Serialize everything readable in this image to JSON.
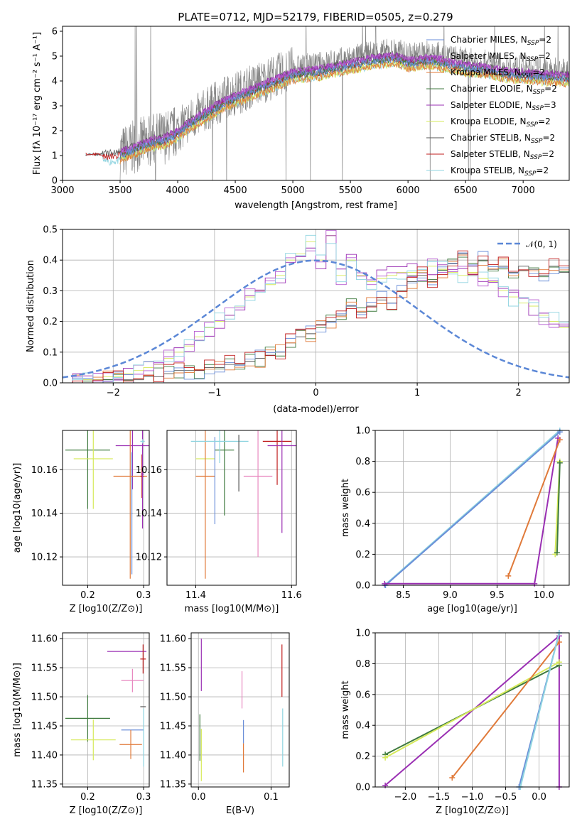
{
  "page_title": "PLATE=0712, MJD=52179, FIBERID=0505, z=0.279",
  "colors": {
    "chabrier_miles": "#6a8ed8",
    "salpeter_miles": "#b55ad0",
    "kroupa_miles": "#e07a3a",
    "chabrier_elodie": "#3f7a3f",
    "salpeter_elodie": "#9a2fb3",
    "kroupa_elodie": "#d6ea5a",
    "chabrier_stelib": "#555555",
    "salpeter_stelib": "#c01e1e",
    "kroupa_stelib": "#8fd4e0",
    "pink": "#e889c0",
    "normal_curve": "#5b87d6",
    "data": "#808080"
  },
  "chart_data": [
    {
      "id": "spectrum",
      "type": "line",
      "title": "PLATE=0712, MJD=52179, FIBERID=0505, z=0.279",
      "xlabel": "wavelength [Angstrom, rest frame]",
      "ylabel": "Flux [f_λ 10^-17 erg cm^-2 s^-1 A^-1]",
      "xlim": [
        3000,
        7400
      ],
      "ylim": [
        0,
        6.2
      ],
      "xticks": [
        "3000",
        "3500",
        "4000",
        "4500",
        "5000",
        "5500",
        "6000",
        "6500",
        "7000"
      ],
      "yticks": [
        "0",
        "1",
        "2",
        "3",
        "4",
        "5",
        "6"
      ],
      "grid": false,
      "legend_position": "top-right",
      "legend": [
        {
          "label": "Chabrier MILES, N",
          "sub": "SSP",
          "eq": "=2",
          "color_key": "chabrier_miles"
        },
        {
          "label": "Salpeter MILES, N",
          "sub": "SSP",
          "eq": "=2",
          "color_key": "salpeter_miles"
        },
        {
          "label": "Kroupa MILES, N",
          "sub": "SSP",
          "eq": "=2",
          "color_key": "kroupa_miles"
        },
        {
          "label": "Chabrier ELODIE, N",
          "sub": "SSP",
          "eq": "=2",
          "color_key": "chabrier_elodie"
        },
        {
          "label": "Salpeter ELODIE, N",
          "sub": "SSP",
          "eq": "=3",
          "color_key": "salpeter_elodie"
        },
        {
          "label": "Kroupa ELODIE, N",
          "sub": "SSP",
          "eq": "=2",
          "color_key": "kroupa_elodie"
        },
        {
          "label": "Chabrier STELIB, N",
          "sub": "SSP",
          "eq": "=2",
          "color_key": "chabrier_stelib"
        },
        {
          "label": "Salpeter STELIB, N",
          "sub": "SSP",
          "eq": "=2",
          "color_key": "salpeter_stelib"
        },
        {
          "label": "Kroupa STELIB, N",
          "sub": "SSP",
          "eq": "=2",
          "color_key": "kroupa_stelib"
        }
      ],
      "model_trend": {
        "x": [
          3200,
          3300,
          3400,
          3500,
          3600,
          3700,
          3800,
          3900,
          4000,
          4100,
          4200,
          4300,
          4400,
          4500,
          4600,
          4700,
          4800,
          4900,
          5000,
          5100,
          5200,
          5300,
          5400,
          5500,
          5600,
          5700,
          5800,
          5900,
          6000,
          6100,
          6200,
          6300,
          6400,
          6500,
          6600,
          6700,
          6800,
          6900,
          7000,
          7100,
          7200,
          7300,
          7400
        ],
        "y": [
          1.0,
          1.1,
          1.05,
          1.1,
          1.3,
          1.5,
          1.65,
          1.75,
          2.0,
          2.4,
          2.7,
          3.0,
          3.3,
          3.5,
          3.7,
          3.9,
          4.1,
          4.3,
          4.5,
          4.55,
          4.6,
          4.7,
          4.8,
          4.9,
          5.0,
          5.1,
          5.15,
          5.2,
          5.0,
          5.05,
          5.1,
          5.0,
          4.9,
          4.8,
          4.75,
          4.7,
          4.6,
          4.5,
          4.5,
          4.45,
          4.4,
          4.4,
          4.35
        ]
      }
    },
    {
      "id": "residuals",
      "type": "line",
      "xlabel": "(data-model)/error",
      "ylabel": "Normed distribution",
      "xlim": [
        -2.5,
        2.5
      ],
      "ylim": [
        0,
        0.5
      ],
      "xticks": [
        "−2",
        "−1",
        "0",
        "1",
        "2"
      ],
      "yticks": [
        "0.0",
        "0.1",
        "0.2",
        "0.3",
        "0.4",
        "0.5"
      ],
      "grid": true,
      "legend_position": "top-right",
      "legend": "𝒩(0, 1)",
      "bin_edges_start": -2.5,
      "bin_width": 0.1,
      "series": [
        {
          "color_key": "chabrier_stelib",
          "values": [
            0.0,
            0.0,
            0.01,
            0.01,
            0.01,
            0.01,
            0.01,
            0.01,
            0.02,
            0.02,
            0.03,
            0.04,
            0.04,
            0.04,
            0.05,
            0.05,
            0.06,
            0.06,
            0.07,
            0.08,
            0.09,
            0.1,
            0.13,
            0.15,
            0.16,
            0.19,
            0.2,
            0.22,
            0.25,
            0.23,
            0.25,
            0.27,
            0.26,
            0.3,
            0.33,
            0.35,
            0.33,
            0.37,
            0.39,
            0.42,
            0.38,
            0.4,
            0.37,
            0.38,
            0.36,
            0.38,
            0.37,
            0.35,
            0.38,
            0.36,
            0.37,
            0.36,
            0.35,
            0.33,
            0.34,
            0.36,
            0.31,
            0.3,
            0.28,
            0.27,
            0.26,
            0.25,
            0.24,
            0.23,
            0.22,
            0.21,
            0.2,
            0.18,
            0.16,
            0.15
          ]
        },
        {
          "color_key": "kroupa_elodie",
          "values": [
            0.0,
            0.0,
            0.01,
            0.01,
            0.02,
            0.02,
            0.03,
            0.04,
            0.05,
            0.06,
            0.08,
            0.1,
            0.12,
            0.15,
            0.18,
            0.2,
            0.22,
            0.25,
            0.28,
            0.3,
            0.32,
            0.35,
            0.4,
            0.42,
            0.46,
            0.4,
            0.48,
            0.35,
            0.4,
            0.35,
            0.33,
            0.34,
            0.35,
            0.36,
            0.36,
            0.36,
            0.38,
            0.37,
            0.36,
            0.35,
            0.36,
            0.34,
            0.33,
            0.3,
            0.28,
            0.26,
            0.25,
            0.22,
            0.2,
            0.18,
            0.17,
            0.15,
            0.13,
            0.12,
            0.1,
            0.09,
            0.07,
            0.06,
            0.05,
            0.04,
            0.04,
            0.03,
            0.02,
            0.02,
            0.01,
            0.01,
            0.01,
            0.0,
            0.0,
            0.0
          ]
        }
      ],
      "normal": {
        "mean": 0,
        "sigma": 1
      }
    },
    {
      "id": "age_vs_Z",
      "type": "scatter",
      "xlabel": "Z [log10(Z/Z⊙)]",
      "ylabel": "age  [log10(age/yr)]",
      "xlim": [
        0.155,
        0.31
      ],
      "ylim": [
        10.107,
        10.178
      ],
      "xticks": [
        "0.2",
        "0.3"
      ],
      "yticks": [
        "10.12",
        "10.14",
        "10.16"
      ],
      "grid": true,
      "points": [
        {
          "color_key": "chabrier_elodie",
          "x": 0.2,
          "y": 10.169,
          "xerr": 0.04,
          "yerr": 0.027
        },
        {
          "color_key": "kroupa_elodie",
          "x": 0.21,
          "y": 10.165,
          "xerr": 0.035,
          "yerr": 0.023
        },
        {
          "color_key": "salpeter_elodie",
          "x": 0.28,
          "y": 10.171,
          "xerr": 0.03,
          "yerr": 0.02
        },
        {
          "color_key": "chabrier_miles",
          "x": 0.279,
          "y": 10.14,
          "xerr": 0.001,
          "yerr": 0.028
        },
        {
          "color_key": "kroupa_miles",
          "x": 0.276,
          "y": 10.157,
          "xerr": 0.03,
          "yerr": 0.047
        },
        {
          "color_key": "salpeter_stelib",
          "x": 0.297,
          "y": 10.157,
          "xerr": 0.003,
          "yerr": 0.01
        },
        {
          "color_key": "salpeter_elodie",
          "x": 0.298,
          "y": 10.158,
          "xerr": 0.003,
          "yerr": 0.025
        },
        {
          "color_key": "kroupa_stelib",
          "x": 0.298,
          "y": 10.173,
          "xerr": 0.004,
          "yerr": 0.001
        }
      ]
    },
    {
      "id": "age_vs_mass",
      "type": "scatter",
      "xlabel": "mass [log10(M/M⊙)]",
      "ylabel": "",
      "xlim": [
        11.34,
        11.61
      ],
      "ylim": [
        10.107,
        10.178
      ],
      "xticks": [
        "11.4",
        "11.6"
      ],
      "yticks": [
        "10.12",
        "10.14",
        "10.16"
      ],
      "grid": true,
      "points": [
        {
          "color_key": "kroupa_elodie",
          "x": 11.42,
          "y": 10.165,
          "xerr": 0.02,
          "yerr": 0.0
        },
        {
          "color_key": "kroupa_miles",
          "x": 11.42,
          "y": 10.157,
          "xerr": 0.02,
          "yerr": 0.047
        },
        {
          "color_key": "chabrier_miles",
          "x": 11.44,
          "y": 10.155,
          "xerr": 0.0,
          "yerr": 0.02
        },
        {
          "color_key": "chabrier_elodie",
          "x": 11.46,
          "y": 10.169,
          "xerr": 0.02,
          "yerr": 0.03
        },
        {
          "color_key": "kroupa_stelib",
          "x": 11.45,
          "y": 10.173,
          "xerr": 0.06,
          "yerr": 0.01
        },
        {
          "color_key": "chabrier_stelib",
          "x": 11.49,
          "y": 10.163,
          "xerr": 0.0,
          "yerr": 0.013
        },
        {
          "color_key": "pink",
          "x": 11.53,
          "y": 10.157,
          "xerr": 0.03,
          "yerr": 0.037
        },
        {
          "color_key": "salpeter_stelib",
          "x": 11.57,
          "y": 10.173,
          "xerr": 0.03,
          "yerr": 0.02
        },
        {
          "color_key": "salpeter_elodie",
          "x": 11.58,
          "y": 10.171,
          "xerr": 0.03,
          "yerr": 0.04
        }
      ]
    },
    {
      "id": "massweight_vs_age",
      "type": "line",
      "xlabel": "age  [log10(age/yr)]",
      "ylabel": "mass weight",
      "xlim": [
        8.2,
        10.27
      ],
      "ylim": [
        0,
        1
      ],
      "xticks": [
        "8.5",
        "9.0",
        "9.5",
        "10.0"
      ],
      "yticks": [
        "0.0",
        "0.2",
        "0.4",
        "0.6",
        "0.8",
        "1.0"
      ],
      "grid": true,
      "series": [
        {
          "color_key": "kroupa_stelib",
          "x": [
            8.3,
            10.17
          ],
          "y": [
            0.0,
            1.0
          ]
        },
        {
          "color_key": "chabrier_miles",
          "x": [
            8.31,
            10.17
          ],
          "y": [
            0.0,
            0.99
          ]
        },
        {
          "color_key": "salpeter_elodie",
          "x": [
            8.3,
            9.9,
            10.15
          ],
          "y": [
            0.01,
            0.01,
            0.95
          ]
        },
        {
          "color_key": "kroupa_miles",
          "x": [
            9.62,
            10.17
          ],
          "y": [
            0.06,
            0.94
          ]
        },
        {
          "color_key": "kroupa_elodie",
          "x": [
            10.12,
            10.17
          ],
          "y": [
            0.2,
            0.8
          ]
        },
        {
          "color_key": "chabrier_elodie",
          "x": [
            10.14,
            10.17
          ],
          "y": [
            0.21,
            0.79
          ]
        }
      ]
    },
    {
      "id": "mass_vs_Z",
      "type": "scatter",
      "xlabel": "Z [log10(Z/Z⊙)]",
      "ylabel": "mass [log10(M/M⊙)]",
      "xlim": [
        0.155,
        0.31
      ],
      "ylim": [
        11.345,
        11.61
      ],
      "xticks": [
        "0.2",
        "0.3"
      ],
      "yticks": [
        "11.35",
        "11.40",
        "11.45",
        "11.50",
        "11.55",
        "11.60"
      ],
      "grid": true,
      "points": [
        {
          "color_key": "chabrier_elodie",
          "x": 0.2,
          "y": 11.463,
          "xerr": 0.04,
          "yerr": 0.04
        },
        {
          "color_key": "kroupa_elodie",
          "x": 0.21,
          "y": 11.426,
          "xerr": 0.04,
          "yerr": 0.035
        },
        {
          "color_key": "salpeter_elodie",
          "x": 0.27,
          "y": 11.578,
          "xerr": 0.035,
          "yerr": 0.0
        },
        {
          "color_key": "pink",
          "x": 0.28,
          "y": 11.528,
          "xerr": 0.02,
          "yerr": 0.02
        },
        {
          "color_key": "chabrier_miles",
          "x": 0.28,
          "y": 11.443,
          "xerr": 0.02,
          "yerr": 0.0
        },
        {
          "color_key": "kroupa_miles",
          "x": 0.277,
          "y": 11.418,
          "xerr": 0.02,
          "yerr": 0.025
        },
        {
          "color_key": "salpeter_stelib",
          "x": 0.299,
          "y": 11.565,
          "xerr": 0.005,
          "yerr": 0.025
        },
        {
          "color_key": "chabrier_stelib",
          "x": 0.299,
          "y": 11.483,
          "xerr": 0.005,
          "yerr": 0.0
        },
        {
          "color_key": "kroupa_stelib",
          "x": 0.3,
          "y": 11.43,
          "xerr": 0.0,
          "yerr": 0.05
        }
      ]
    },
    {
      "id": "mass_vs_ebv",
      "type": "scatter",
      "xlabel": "E(B-V)",
      "ylabel": "",
      "xlim": [
        -0.01,
        0.125
      ],
      "ylim": [
        11.345,
        11.61
      ],
      "xticks": [
        "0.0",
        "0.1"
      ],
      "yticks": [
        "11.35",
        "11.40",
        "11.45",
        "11.50",
        "11.55",
        "11.60"
      ],
      "grid": true,
      "points": [
        {
          "color_key": "chabrier_elodie",
          "x": 0.002,
          "y": 11.43,
          "xerr": 0.0,
          "yerr": 0.04
        },
        {
          "color_key": "kroupa_elodie",
          "x": 0.004,
          "y": 11.4,
          "xerr": 0.0,
          "yerr": 0.045
        },
        {
          "color_key": "salpeter_elodie",
          "x": 0.004,
          "y": 11.555,
          "xerr": 0.0,
          "yerr": 0.045
        },
        {
          "color_key": "pink",
          "x": 0.06,
          "y": 11.512,
          "xerr": 0.0,
          "yerr": 0.032
        },
        {
          "color_key": "chabrier_miles",
          "x": 0.062,
          "y": 11.44,
          "xerr": 0.0,
          "yerr": 0.02
        },
        {
          "color_key": "kroupa_miles",
          "x": 0.062,
          "y": 11.395,
          "xerr": 0.0,
          "yerr": 0.025
        },
        {
          "color_key": "salpeter_stelib",
          "x": 0.115,
          "y": 11.545,
          "xerr": 0.0,
          "yerr": 0.045
        },
        {
          "color_key": "kroupa_stelib",
          "x": 0.116,
          "y": 11.43,
          "xerr": 0.0,
          "yerr": 0.05
        }
      ]
    },
    {
      "id": "massweight_vs_Z",
      "type": "line",
      "xlabel": "Z [log10(Z/Z⊙)]",
      "ylabel": "mass weight",
      "xlim": [
        -2.45,
        0.45
      ],
      "ylim": [
        0,
        1
      ],
      "xticks": [
        "−2.0",
        "−1.5",
        "−1.0",
        "−0.5",
        "0.0"
      ],
      "yticks": [
        "0.0",
        "0.2",
        "0.4",
        "0.6",
        "0.8",
        "1.0"
      ],
      "grid": true,
      "series": [
        {
          "color_key": "salpeter_elodie",
          "x": [
            -2.3,
            0.3,
            0.3
          ],
          "y": [
            0.01,
            0.98,
            0.0
          ]
        },
        {
          "color_key": "chabrier_elodie",
          "x": [
            -2.3,
            0.3
          ],
          "y": [
            0.21,
            0.79
          ]
        },
        {
          "color_key": "kroupa_elodie",
          "x": [
            -2.3,
            0.3
          ],
          "y": [
            0.19,
            0.81
          ]
        },
        {
          "color_key": "kroupa_miles",
          "x": [
            -1.3,
            0.3
          ],
          "y": [
            0.06,
            0.94
          ]
        },
        {
          "color_key": "chabrier_miles",
          "x": [
            -0.3,
            0.3
          ],
          "y": [
            0.0,
            1.0
          ]
        },
        {
          "color_key": "kroupa_stelib",
          "x": [
            -0.28,
            0.3
          ],
          "y": [
            0.0,
            1.0
          ]
        }
      ]
    }
  ]
}
